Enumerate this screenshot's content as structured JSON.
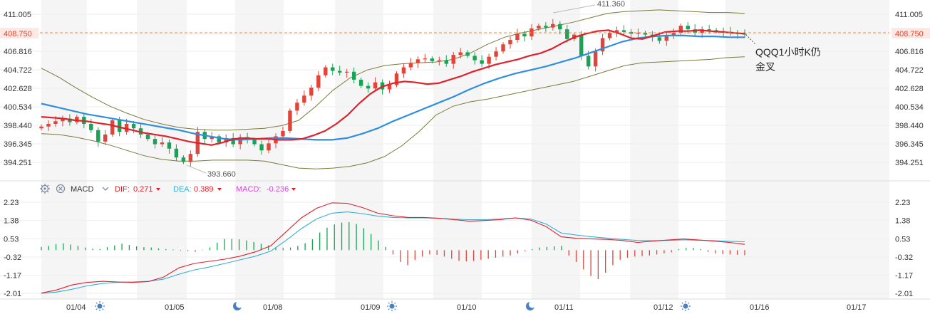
{
  "colors": {
    "up": "#e0453a",
    "down": "#17a454",
    "ma_red": "#e0202a",
    "ma_blue": "#2f8fde",
    "band": "#7a7a3a",
    "dif": "#e0202a",
    "dea": "#35b0d6",
    "macd_label": "#d04ad0",
    "price_line": "#e88a3c",
    "grid": "#eeeeee",
    "shade": "#f5f5f5"
  },
  "price_axis": {
    "ticks": [
      "411.005",
      "408.750",
      "406.816",
      "404.722",
      "402.628",
      "400.534",
      "398.440",
      "396.345",
      "394.251"
    ],
    "current_price": "408.750"
  },
  "macd_axis": {
    "ticks": [
      "2.23",
      "1.38",
      "0.53",
      "-0.32",
      "-1.17",
      "-2.01"
    ]
  },
  "indicator_header": {
    "name": "MACD",
    "dif_label": "DIF:",
    "dif_value": "0.271",
    "dea_label": "DEA:",
    "dea_value": "0.389",
    "macd_label": "MACD:",
    "macd_value": "-0.236",
    "settings_icon": "gear-icon",
    "close_icon": "close-icon",
    "dropdown_icon": "chevron-down-icon"
  },
  "annotations": {
    "high_label": "411.360",
    "low_label": "393.660",
    "note_line1": "QQQ1小时K仍",
    "note_line2": "金叉"
  },
  "x_axis": {
    "dates": [
      "01/04",
      "01/05",
      "01/08",
      "01/09",
      "01/10",
      "01/11",
      "01/12",
      "01/16",
      "01/17"
    ],
    "session_icons": [
      "sun-icon",
      "moon-icon",
      "sun-icon",
      "moon-icon",
      "sun-icon"
    ]
  },
  "chart_data": [
    {
      "type": "candlestick",
      "title": "",
      "price_axis_ticks": [
        411.005,
        408.75,
        406.816,
        404.722,
        402.628,
        400.534,
        398.44,
        396.345,
        394.251
      ],
      "ylim": [
        393.0,
        412.2
      ],
      "current_price": 408.75,
      "overlays": [
        "moving average (red)",
        "moving average (blue)",
        "bollinger bands (olive)"
      ],
      "annotated_high": 411.36,
      "annotated_low": 393.66,
      "close_path": [
        398.3,
        398.6,
        398.9,
        399.2,
        398.8,
        399.4,
        398.6,
        397.9,
        396.6,
        397.4,
        399.0,
        397.7,
        398.6,
        398.1,
        397.4,
        396.9,
        396.3,
        396.5,
        395.8,
        394.8,
        394.3,
        395.2,
        397.7,
        396.9,
        397.2,
        396.5,
        397.0,
        396.3,
        397.1,
        396.8,
        396.3,
        395.6,
        396.4,
        397.2,
        397.8,
        400.1,
        401.0,
        401.8,
        402.7,
        404.1,
        405.0,
        404.6,
        404.4,
        404.5,
        403.6,
        402.9,
        402.6,
        403.3,
        402.5,
        403.0,
        404.3,
        405.0,
        405.5,
        405.9,
        406.0,
        405.7,
        405.8,
        405.4,
        406.4,
        406.7,
        406.3,
        405.8,
        405.4,
        406.2,
        406.8,
        407.6,
        408.1,
        408.8,
        408.5,
        409.4,
        409.7,
        409.5,
        409.9,
        409.3,
        408.2,
        408.7,
        406.3,
        405.1,
        406.8,
        408.3,
        408.9,
        409.2,
        409.0,
        408.8,
        408.9,
        408.7,
        408.4,
        408.0,
        408.6,
        408.9,
        409.7,
        409.3,
        408.9,
        409.3,
        409.2,
        409.1,
        409.0,
        408.9,
        408.8,
        408.75
      ],
      "ma_red": [
        399.4,
        399.3,
        399.2,
        399.0,
        398.9,
        398.7,
        398.5,
        398.2,
        397.9,
        397.6,
        397.4,
        397.2,
        396.9,
        396.6,
        396.4,
        396.2,
        396.5,
        396.9,
        397.0,
        396.9,
        396.9,
        396.8,
        396.8,
        396.9,
        397.3,
        397.8,
        398.6,
        399.6,
        400.9,
        402.0,
        402.8,
        403.2,
        403.4,
        403.3,
        403.1,
        403.2,
        403.6,
        404.0,
        404.5,
        404.9,
        405.3,
        405.6,
        405.9,
        406.3,
        406.6,
        407.1,
        407.8,
        408.4,
        408.8,
        409.1,
        409.2,
        408.8,
        408.3,
        408.2,
        408.6,
        409.0,
        409.1,
        409.1,
        409.2,
        409.1,
        409.0,
        408.9,
        408.8
      ],
      "ma_blue": [
        400.9,
        400.5,
        400.1,
        399.7,
        399.4,
        399.1,
        398.8,
        398.5,
        398.2,
        397.9,
        397.5,
        397.2,
        396.9,
        396.8,
        396.9,
        397.0,
        397.0,
        396.9,
        396.8,
        396.8,
        397.0,
        397.5,
        398.1,
        398.9,
        399.6,
        400.3,
        401.0,
        401.7,
        402.5,
        403.2,
        403.8,
        404.3,
        404.7,
        405.1,
        405.6,
        406.1,
        406.7,
        407.3,
        407.9,
        408.3,
        408.5,
        408.6,
        408.6,
        408.5,
        408.5,
        408.4,
        408.4
      ],
      "bb_upper": [
        404.9,
        403.9,
        402.7,
        401.6,
        400.6,
        399.8,
        399.1,
        398.6,
        398.2,
        398.0,
        397.9,
        397.9,
        398.0,
        398.1,
        398.4,
        399.0,
        400.6,
        402.4,
        403.8,
        404.7,
        405.2,
        405.4,
        405.5,
        405.6,
        405.9,
        406.6,
        407.6,
        408.4,
        408.9,
        409.3,
        409.7,
        410.1,
        410.6,
        411.1,
        411.3,
        411.4,
        411.5,
        411.4,
        411.3,
        411.2,
        411.2,
        411.1
      ],
      "bb_lower": [
        397.5,
        397.4,
        397.1,
        396.7,
        396.2,
        395.6,
        395.0,
        394.6,
        394.4,
        394.4,
        394.5,
        394.5,
        394.5,
        394.4,
        394.0,
        393.6,
        393.5,
        393.6,
        393.8,
        394.2,
        394.9,
        396.1,
        397.7,
        399.6,
        400.6,
        401.1,
        401.4,
        401.8,
        402.2,
        402.6,
        403.0,
        403.4,
        404.0,
        404.6,
        405.2,
        405.5,
        405.6,
        405.7,
        405.8,
        405.9,
        406.1,
        406.2
      ]
    },
    {
      "type": "bar",
      "title": "MACD",
      "ylim": [
        -2.2,
        2.4
      ],
      "axis_ticks": [
        2.23,
        1.38,
        0.53,
        -0.32,
        -1.17,
        -2.01
      ],
      "series": [
        {
          "name": "DIF",
          "last": 0.271,
          "values": [
            -2.0,
            -1.85,
            -1.62,
            -1.5,
            -1.45,
            -1.48,
            -1.5,
            -1.46,
            -1.25,
            -0.82,
            -0.62,
            -0.52,
            -0.42,
            -0.28,
            -0.08,
            0.2,
            0.85,
            1.5,
            1.95,
            2.2,
            2.18,
            1.98,
            1.72,
            1.6,
            1.52,
            1.52,
            1.48,
            1.42,
            1.35,
            1.38,
            1.42,
            1.5,
            1.4,
            1.1,
            0.62,
            0.55,
            0.52,
            0.5,
            0.45,
            0.36,
            0.42,
            0.47,
            0.52,
            0.47,
            0.42,
            0.36,
            0.27
          ]
        },
        {
          "name": "DEA",
          "last": 0.389,
          "values": [
            -2.01,
            -1.95,
            -1.82,
            -1.66,
            -1.55,
            -1.5,
            -1.48,
            -1.45,
            -1.35,
            -1.12,
            -0.92,
            -0.78,
            -0.62,
            -0.45,
            -0.28,
            -0.05,
            0.45,
            1.0,
            1.45,
            1.72,
            1.78,
            1.7,
            1.58,
            1.52,
            1.5,
            1.5,
            1.48,
            1.44,
            1.42,
            1.42,
            1.45,
            1.5,
            1.45,
            1.22,
            0.8,
            0.7,
            0.62,
            0.56,
            0.5,
            0.45,
            0.44,
            0.45,
            0.48,
            0.46,
            0.44,
            0.41,
            0.39
          ]
        },
        {
          "name": "MACD",
          "last": -0.236,
          "values": [
            0.15,
            0.2,
            0.28,
            0.32,
            0.26,
            0.2,
            0.12,
            0.06,
            0.05,
            0.14,
            0.22,
            0.3,
            0.24,
            0.18,
            0.14,
            0.12,
            0.08,
            0.05,
            0.03,
            -0.03,
            -0.05,
            -0.08,
            0.02,
            0.12,
            0.35,
            0.52,
            0.52,
            0.5,
            0.45,
            0.38,
            0.3,
            0.22,
            0.14,
            0.1,
            0.12,
            0.2,
            0.32,
            0.5,
            0.82,
            1.05,
            1.2,
            1.28,
            1.3,
            1.22,
            1.02,
            0.75,
            0.45,
            0.15,
            -0.2,
            -0.55,
            -0.7,
            -0.45,
            -0.3,
            -0.2,
            -0.22,
            -0.3,
            -0.4,
            -0.5,
            -0.52,
            -0.5,
            -0.45,
            -0.4,
            -0.35,
            -0.3,
            -0.25,
            -0.15,
            -0.05,
            0.05,
            0.12,
            0.15,
            0.18,
            0.2,
            -0.25,
            -0.55,
            -0.9,
            -1.2,
            -1.35,
            -1.05,
            -0.7,
            -0.45,
            -0.35,
            -0.3,
            -0.28,
            -0.25,
            -0.2,
            -0.15,
            -0.1,
            0.05,
            0.1,
            0.1,
            0.05,
            -0.08,
            -0.15,
            -0.18,
            -0.2,
            -0.22,
            -0.236
          ]
        }
      ]
    }
  ]
}
